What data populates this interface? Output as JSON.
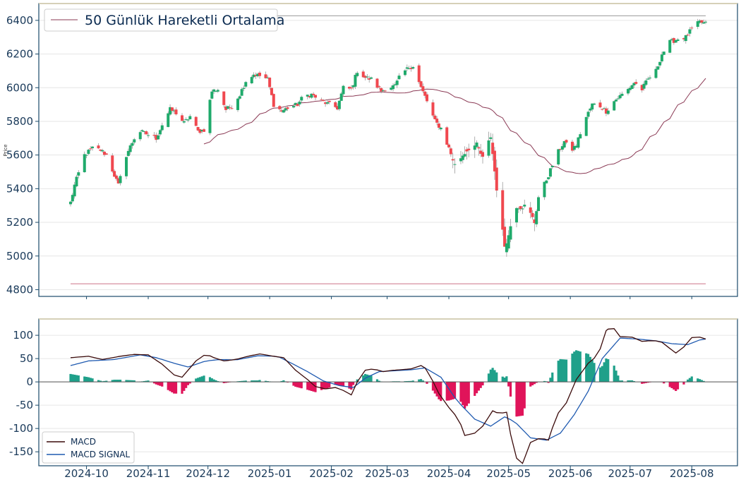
{
  "chart_data": [
    {
      "type": "candlestick",
      "ylabel": "Price",
      "ylim": [
        4760,
        6500
      ],
      "yticks": [
        4800,
        5000,
        5200,
        5400,
        5600,
        5800,
        6000,
        6200,
        6400
      ],
      "xticks": [
        "2024-10",
        "2024-11",
        "2024-12",
        "2025-01",
        "2025-02",
        "2025-03",
        "2025-04",
        "2025-05",
        "2025-06",
        "2025-07",
        "2025-08"
      ],
      "legend": {
        "label": "50 Günlük Hareketli Ortalama",
        "location": "upper-left"
      },
      "up_color": "#1faa6b",
      "down_color": "#f0484f",
      "ma_color": "#8b3a55",
      "hline_color": "#c0506a",
      "x_start": "2024-09-23",
      "x_end": "2025-08-08",
      "reference_lines": {
        "max_close": 6427,
        "min_low": 4835
      },
      "close_anchors": [
        [
          "2024-09-23",
          5318
        ],
        [
          "2024-09-25",
          5420
        ],
        [
          "2024-09-30",
          5600
        ],
        [
          "2024-10-04",
          5640
        ],
        [
          "2024-10-08",
          5630
        ],
        [
          "2024-10-11",
          5600
        ],
        [
          "2024-10-15",
          5480
        ],
        [
          "2024-10-17",
          5420
        ],
        [
          "2024-10-21",
          5600
        ],
        [
          "2024-10-25",
          5700
        ],
        [
          "2024-10-28",
          5740
        ],
        [
          "2024-11-01",
          5720
        ],
        [
          "2024-11-05",
          5700
        ],
        [
          "2024-11-08",
          5780
        ],
        [
          "2024-11-12",
          5870
        ],
        [
          "2024-11-15",
          5850
        ],
        [
          "2024-11-19",
          5790
        ],
        [
          "2024-11-22",
          5830
        ],
        [
          "2024-11-26",
          5740
        ],
        [
          "2024-11-29",
          5750
        ],
        [
          "2024-12-03",
          5980
        ],
        [
          "2024-12-06",
          5990
        ],
        [
          "2024-12-10",
          5870
        ],
        [
          "2024-12-13",
          5890
        ],
        [
          "2024-12-17",
          5960
        ],
        [
          "2024-12-20",
          6040
        ],
        [
          "2024-12-24",
          6080
        ],
        [
          "2024-12-27",
          6070
        ],
        [
          "2024-12-31",
          6050
        ],
        [
          "2025-01-03",
          5900
        ],
        [
          "2025-01-07",
          5860
        ],
        [
          "2025-01-10",
          5880
        ],
        [
          "2025-01-15",
          5900
        ],
        [
          "2025-01-18",
          5950
        ],
        [
          "2025-01-22",
          5960
        ],
        [
          "2025-01-27",
          5920
        ],
        [
          "2025-01-31",
          5900
        ],
        [
          "2025-02-04",
          5880
        ],
        [
          "2025-02-07",
          6000
        ],
        [
          "2025-02-11",
          5990
        ],
        [
          "2025-02-14",
          6100
        ],
        [
          "2025-02-18",
          6060
        ],
        [
          "2025-02-21",
          6050
        ],
        [
          "2025-02-26",
          5980
        ],
        [
          "2025-03-01",
          6000
        ],
        [
          "2025-03-05",
          6010
        ],
        [
          "2025-03-08",
          6080
        ],
        [
          "2025-03-12",
          6120
        ],
        [
          "2025-03-14",
          6130
        ],
        [
          "2025-03-18",
          6000
        ],
        [
          "2025-03-21",
          5920
        ],
        [
          "2025-03-25",
          5800
        ],
        [
          "2025-03-28",
          5760
        ],
        [
          "2025-04-01",
          5640
        ],
        [
          "2025-04-04",
          5540
        ],
        [
          "2025-04-08",
          5600
        ],
        [
          "2025-04-11",
          5640
        ],
        [
          "2025-04-15",
          5660
        ],
        [
          "2025-04-18",
          5580
        ],
        [
          "2025-04-22",
          5710
        ],
        [
          "2025-04-25",
          5400
        ],
        [
          "2025-04-29",
          5060
        ],
        [
          "2025-05-01",
          5120
        ],
        [
          "2025-05-04",
          5300
        ],
        [
          "2025-05-07",
          5290
        ],
        [
          "2025-05-10",
          5300
        ],
        [
          "2025-05-14",
          5200
        ],
        [
          "2025-05-16",
          5350
        ],
        [
          "2025-05-21",
          5480
        ],
        [
          "2025-05-25",
          5600
        ],
        [
          "2025-05-29",
          5680
        ],
        [
          "2025-06-01",
          5620
        ],
        [
          "2025-06-04",
          5660
        ],
        [
          "2025-06-08",
          5800
        ],
        [
          "2025-06-12",
          5900
        ],
        [
          "2025-06-15",
          5900
        ],
        [
          "2025-06-19",
          5860
        ],
        [
          "2025-06-23",
          5920
        ],
        [
          "2025-06-26",
          5950
        ],
        [
          "2025-06-30",
          5990
        ],
        [
          "2025-07-03",
          6030
        ],
        [
          "2025-07-07",
          5990
        ],
        [
          "2025-07-10",
          6050
        ],
        [
          "2025-07-14",
          6100
        ],
        [
          "2025-07-17",
          6200
        ],
        [
          "2025-07-21",
          6270
        ],
        [
          "2025-07-25",
          6290
        ],
        [
          "2025-07-29",
          6300
        ],
        [
          "2025-08-01",
          6350
        ],
        [
          "2025-08-05",
          6390
        ],
        [
          "2025-08-08",
          6380
        ]
      ]
    },
    {
      "type": "line+bar",
      "ylim": [
        -180,
        135
      ],
      "yticks": [
        -150,
        -100,
        -50,
        0,
        50,
        100
      ],
      "series": [
        {
          "name": "MACD",
          "color": "#3a0a0a"
        },
        {
          "name": "MACD SIGNAL",
          "color": "#1f5ab0"
        }
      ],
      "histogram": {
        "positive_color": "#1fa08a",
        "negative_color": "#e0145a"
      },
      "legend": {
        "location": "lower-left"
      },
      "macd_anchors": [
        [
          "2024-09-23",
          52
        ],
        [
          "2024-10-02",
          55
        ],
        [
          "2024-10-09",
          48
        ],
        [
          "2024-10-18",
          55
        ],
        [
          "2024-10-25",
          59
        ],
        [
          "2024-11-01",
          58
        ],
        [
          "2024-11-08",
          38
        ],
        [
          "2024-11-14",
          15
        ],
        [
          "2024-11-18",
          10
        ],
        [
          "2024-11-25",
          45
        ],
        [
          "2024-11-30",
          60
        ],
        [
          "2024-12-04",
          52
        ],
        [
          "2024-12-09",
          45
        ],
        [
          "2024-12-15",
          48
        ],
        [
          "2024-12-21",
          55
        ],
        [
          "2024-12-27",
          60
        ],
        [
          "2025-01-03",
          55
        ],
        [
          "2025-01-08",
          52
        ],
        [
          "2025-01-14",
          25
        ],
        [
          "2025-01-20",
          5
        ],
        [
          "2025-01-24",
          -10
        ],
        [
          "2025-01-29",
          -15
        ],
        [
          "2025-02-03",
          -12
        ],
        [
          "2025-02-08",
          -20
        ],
        [
          "2025-02-11",
          -28
        ],
        [
          "2025-02-14",
          0
        ],
        [
          "2025-02-18",
          25
        ],
        [
          "2025-02-22",
          28
        ],
        [
          "2025-02-27",
          22
        ],
        [
          "2025-03-04",
          25
        ],
        [
          "2025-03-08",
          26
        ],
        [
          "2025-03-13",
          28
        ],
        [
          "2025-03-18",
          35
        ],
        [
          "2025-03-20",
          30
        ],
        [
          "2025-03-23",
          10
        ],
        [
          "2025-03-27",
          -25
        ],
        [
          "2025-04-01",
          -55
        ],
        [
          "2025-04-06",
          -80
        ],
        [
          "2025-04-09",
          -115
        ],
        [
          "2025-04-14",
          -110
        ],
        [
          "2025-04-18",
          -95
        ],
        [
          "2025-04-23",
          -62
        ],
        [
          "2025-04-26",
          -68
        ],
        [
          "2025-04-30",
          -65
        ],
        [
          "2025-05-04",
          -160
        ],
        [
          "2025-05-08",
          -175
        ],
        [
          "2025-05-12",
          -130
        ],
        [
          "2025-05-17",
          -120
        ],
        [
          "2025-05-21",
          -125
        ],
        [
          "2025-05-25",
          -72
        ],
        [
          "2025-05-30",
          -45
        ],
        [
          "2025-06-04",
          5
        ],
        [
          "2025-06-10",
          40
        ],
        [
          "2025-06-15",
          58
        ],
        [
          "2025-06-19",
          110
        ],
        [
          "2025-06-22",
          120
        ],
        [
          "2025-06-26",
          97
        ],
        [
          "2025-07-02",
          96
        ],
        [
          "2025-07-07",
          87
        ],
        [
          "2025-07-13",
          89
        ],
        [
          "2025-07-17",
          85
        ],
        [
          "2025-07-20",
          75
        ],
        [
          "2025-07-24",
          62
        ],
        [
          "2025-07-28",
          75
        ],
        [
          "2025-08-01",
          95
        ],
        [
          "2025-08-05",
          96
        ],
        [
          "2025-08-08",
          92
        ]
      ],
      "signal_anchors": [
        [
          "2024-09-23",
          35
        ],
        [
          "2024-10-02",
          45
        ],
        [
          "2024-10-15",
          48
        ],
        [
          "2024-10-28",
          58
        ],
        [
          "2024-11-05",
          52
        ],
        [
          "2024-11-14",
          40
        ],
        [
          "2024-11-21",
          32
        ],
        [
          "2024-11-30",
          45
        ],
        [
          "2024-12-07",
          48
        ],
        [
          "2024-12-15",
          47
        ],
        [
          "2024-12-26",
          56
        ],
        [
          "2025-01-05",
          55
        ],
        [
          "2025-01-12",
          40
        ],
        [
          "2025-01-20",
          22
        ],
        [
          "2025-01-28",
          2
        ],
        [
          "2025-02-05",
          -8
        ],
        [
          "2025-02-12",
          -12
        ],
        [
          "2025-02-18",
          8
        ],
        [
          "2025-02-25",
          22
        ],
        [
          "2025-03-05",
          24
        ],
        [
          "2025-03-13",
          26
        ],
        [
          "2025-03-20",
          30
        ],
        [
          "2025-03-28",
          10
        ],
        [
          "2025-04-05",
          -40
        ],
        [
          "2025-04-14",
          -80
        ],
        [
          "2025-04-22",
          -95
        ],
        [
          "2025-04-29",
          -75
        ],
        [
          "2025-05-04",
          -85
        ],
        [
          "2025-05-12",
          -120
        ],
        [
          "2025-05-20",
          -125
        ],
        [
          "2025-05-27",
          -110
        ],
        [
          "2025-06-03",
          -70
        ],
        [
          "2025-06-10",
          -20
        ],
        [
          "2025-06-17",
          50
        ],
        [
          "2025-06-26",
          94
        ],
        [
          "2025-07-05",
          92
        ],
        [
          "2025-07-14",
          88
        ],
        [
          "2025-07-22",
          82
        ],
        [
          "2025-07-30",
          80
        ],
        [
          "2025-08-05",
          90
        ],
        [
          "2025-08-08",
          92
        ]
      ]
    }
  ]
}
